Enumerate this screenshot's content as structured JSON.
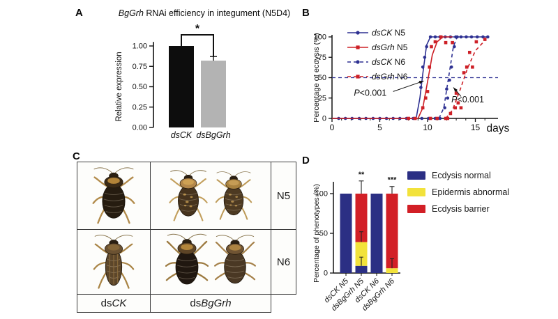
{
  "figure": {
    "panel_labels": {
      "a": "A",
      "b": "B",
      "c": "C",
      "d": "D"
    }
  },
  "chart_data": [
    {
      "id": "A",
      "type": "bar",
      "title_gene": "BgGrh",
      "title_rest": " RNAi efficiency in integument (N5D4)",
      "ylabel": "Relative expression",
      "ylim": [
        0,
        1.05
      ],
      "yticks": [
        "0.00",
        "0.25",
        "0.50",
        "0.75",
        "1.00"
      ],
      "categories": [
        "dsCK",
        "dsBgGrh"
      ],
      "values": [
        1.0,
        0.82
      ],
      "errors": [
        0,
        0.05
      ],
      "bar_colors": [
        "#0d0d0d",
        "#b3b3b3"
      ],
      "significance": "*"
    },
    {
      "id": "B",
      "type": "line",
      "ylabel": "Percentage of ecdysis (%)",
      "xlabel": "days",
      "xlim": [
        0,
        17
      ],
      "ylim": [
        0,
        100
      ],
      "xticks": [
        0,
        5,
        10,
        15
      ],
      "yticks": [
        0,
        25,
        50,
        75,
        100
      ],
      "reference_line": 50,
      "legend": [
        {
          "gene": "dsCK",
          "rest": " N5",
          "color": "#2e3192",
          "dashed": false,
          "marker": "circle"
        },
        {
          "gene": "dsGrh",
          "rest": " N5",
          "color": "#cd2027",
          "dashed": false,
          "marker": "square"
        },
        {
          "gene": "dsCK",
          "rest": " N6",
          "color": "#2e3192",
          "dashed": true,
          "marker": "circle"
        },
        {
          "gene": "dsGrh",
          "rest": " N6",
          "color": "#cd2027",
          "dashed": true,
          "marker": "square"
        }
      ],
      "series": [
        {
          "name": "dsCK N5",
          "color": "#2e3192",
          "dashed": false,
          "marker": "circle",
          "curve": [
            [
              0,
              0
            ],
            [
              8.8,
              0
            ],
            [
              9.2,
              25
            ],
            [
              9.5,
              55
            ],
            [
              9.9,
              90
            ],
            [
              10.3,
              100
            ],
            [
              16.3,
              100
            ]
          ],
          "points": [
            [
              0.7,
              0
            ],
            [
              1.4,
              0
            ],
            [
              2.1,
              0
            ],
            [
              2.85,
              0
            ],
            [
              3.55,
              0
            ],
            [
              4.3,
              0
            ],
            [
              5.0,
              0
            ],
            [
              5.7,
              0
            ],
            [
              6.4,
              0
            ],
            [
              7.1,
              0
            ],
            [
              7.8,
              0
            ],
            [
              8.5,
              0
            ],
            [
              9.3,
              38
            ],
            [
              9.5,
              63
            ],
            [
              9.7,
              75
            ],
            [
              9.9,
              88
            ],
            [
              10.3,
              100
            ],
            [
              10.8,
              100
            ],
            [
              11.3,
              100
            ],
            [
              11.85,
              100
            ],
            [
              12.4,
              100
            ],
            [
              12.95,
              100
            ],
            [
              13.5,
              100
            ],
            [
              14.05,
              100
            ],
            [
              14.6,
              100
            ],
            [
              15.2,
              100
            ],
            [
              15.8,
              100
            ],
            [
              16.3,
              100
            ]
          ]
        },
        {
          "name": "dsGrh N5",
          "color": "#cd2027",
          "dashed": false,
          "marker": "square",
          "curve": [
            [
              0,
              0
            ],
            [
              9.0,
              0
            ],
            [
              9.5,
              13
            ],
            [
              10.0,
              45
            ],
            [
              10.5,
              78
            ],
            [
              11.0,
              94
            ],
            [
              11.6,
              100
            ],
            [
              12.6,
              100
            ]
          ],
          "points": [
            [
              8.0,
              0
            ],
            [
              8.7,
              0
            ],
            [
              9.5,
              13
            ],
            [
              9.8,
              25
            ],
            [
              10.0,
              33
            ],
            [
              10.2,
              63
            ],
            [
              10.4,
              88
            ],
            [
              10.8,
              94
            ],
            [
              11.4,
              100
            ],
            [
              11.9,
              93
            ],
            [
              12.6,
              93
            ]
          ]
        },
        {
          "name": "dsCK N6",
          "color": "#2e3192",
          "dashed": true,
          "marker": "circle",
          "curve": [
            [
              11.2,
              0
            ],
            [
              11.7,
              13
            ],
            [
              12.2,
              50
            ],
            [
              12.7,
              88
            ],
            [
              13.1,
              100
            ],
            [
              13.5,
              100
            ]
          ],
          "points": [
            [
              9.4,
              0
            ],
            [
              10.1,
              0
            ],
            [
              10.8,
              0
            ],
            [
              11.3,
              0
            ],
            [
              11.8,
              13
            ],
            [
              12.0,
              36
            ],
            [
              12.1,
              25
            ],
            [
              12.3,
              47
            ],
            [
              12.5,
              63
            ],
            [
              12.8,
              88
            ],
            [
              13.1,
              100
            ]
          ]
        },
        {
          "name": "dsGrh N6",
          "color": "#cd2027",
          "dashed": true,
          "marker": "square",
          "curve": [
            [
              11.9,
              0
            ],
            [
              12.6,
              10
            ],
            [
              13.4,
              35
            ],
            [
              14.2,
              62
            ],
            [
              15.0,
              83
            ],
            [
              16.1,
              97
            ]
          ],
          "points": [
            [
              10.3,
              0
            ],
            [
              11.0,
              0
            ],
            [
              11.9,
              0
            ],
            [
              12.1,
              0
            ],
            [
              12.4,
              6
            ],
            [
              12.9,
              13
            ],
            [
              13.0,
              31
            ],
            [
              13.2,
              19
            ],
            [
              13.5,
              13
            ],
            [
              13.8,
              56
            ],
            [
              14.1,
              63
            ],
            [
              14.4,
              81
            ],
            [
              14.7,
              63
            ],
            [
              15.1,
              94
            ],
            [
              16.0,
              97
            ]
          ]
        }
      ],
      "annotations": [
        {
          "text": "P<0.001",
          "tx": 4.0,
          "ty": 31,
          "ax1": 6.4,
          "ay1": 33,
          "ax2": 9.6,
          "ay2": 46
        },
        {
          "text": "P<0.001",
          "tx": 14.2,
          "ty": 23,
          "ax1": 13.5,
          "ay1": 27,
          "ax2": 12.7,
          "ay2": 38
        }
      ]
    },
    {
      "id": "D",
      "type": "stacked-bar",
      "ylabel": "Percentage of phenotypes (%)",
      "ylim": [
        0,
        125
      ],
      "yticks": [
        0,
        50,
        100
      ],
      "categories": [
        "dsCK N5",
        "dsBgGrh N5",
        "dsCK N6",
        "dsBgGrh N6"
      ],
      "legend": [
        {
          "label": "Ecdysis normal",
          "color": "#2b2f84"
        },
        {
          "label": "Epidermis abnormal",
          "color": "#f2e23b"
        },
        {
          "label": "Ecdysis barrier",
          "color": "#d21f26"
        }
      ],
      "series": [
        {
          "name": "Ecdysis normal",
          "color": "#2b2f84",
          "values": [
            100,
            9,
            100,
            0
          ]
        },
        {
          "name": "Epidermis abnormal",
          "color": "#f2e23b",
          "values": [
            0,
            30,
            0,
            6
          ]
        },
        {
          "name": "Ecdysis barrier",
          "color": "#d21f26",
          "values": [
            0,
            61,
            0,
            94
          ]
        }
      ],
      "top_errors": [
        0,
        16,
        0,
        9
      ],
      "segment_errors": [
        {
          "bar": 1,
          "from": 9,
          "to": 20
        },
        {
          "bar": 1,
          "from": 39,
          "to": 52
        },
        {
          "bar": 3,
          "from": 6,
          "to": 18
        }
      ],
      "significance": [
        "",
        "**",
        "",
        "***"
      ]
    }
  ],
  "panel_c": {
    "row_labels": [
      "N5",
      "N6"
    ],
    "col_labels": [
      {
        "prefix": "ds",
        "gene": "CK"
      },
      {
        "prefix": "ds",
        "gene": "BgGrh"
      }
    ]
  }
}
